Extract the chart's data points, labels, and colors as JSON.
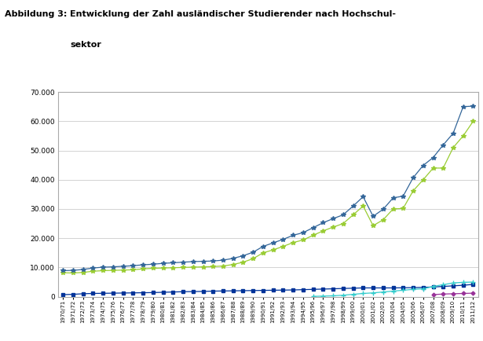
{
  "title_label": "Abbildung 3:",
  "title_text": "Entwicklung der Zahl ausländischer Studierender nach Hochschul-\nsektor",
  "years": [
    "1970/71",
    "1971/72",
    "1972/73",
    "1973/74",
    "1974/75",
    "1975/76",
    "1976/77",
    "1977/78",
    "1978/79",
    "1979/80",
    "1980/81",
    "1981/82",
    "1982/83",
    "1983/84",
    "1984/85",
    "1985/86",
    "1986/87",
    "1987/88",
    "1988/89",
    "1989/90",
    "1990/91",
    "1991/92",
    "1992/93",
    "1993/94",
    "1994/95",
    "1995/96",
    "1996/97",
    "1997/98",
    "1998/99",
    "1999/00",
    "2000/01",
    "2001/02",
    "2002/03",
    "2003/04",
    "2004/05",
    "2005/06",
    "2006/07",
    "2007/08",
    "2008/09",
    "2009/10",
    "2010/11",
    "2011/12"
  ],
  "wiss_univ": [
    8200,
    8100,
    8300,
    8700,
    8900,
    9000,
    9100,
    9200,
    9500,
    9700,
    9800,
    9900,
    10000,
    10100,
    10200,
    10300,
    10500,
    11000,
    11800,
    13000,
    15000,
    16000,
    17200,
    18500,
    19400,
    21000,
    22500,
    23800,
    25000,
    28000,
    31000,
    24300,
    26300,
    30000,
    30200,
    36200,
    40000,
    44000,
    44000,
    51000,
    55000,
    60000
  ],
  "kunstuniv": [
    700,
    800,
    1000,
    1100,
    1150,
    1200,
    1250,
    1300,
    1350,
    1400,
    1500,
    1600,
    1700,
    1750,
    1800,
    1900,
    1950,
    2000,
    2050,
    2100,
    2150,
    2200,
    2250,
    2300,
    2400,
    2500,
    2600,
    2700,
    2800,
    2900,
    3000,
    3000,
    3000,
    3000,
    3050,
    3100,
    3200,
    3300,
    3500,
    3700,
    3900,
    4200
  ],
  "fh_studiengaenge": [
    null,
    null,
    null,
    null,
    null,
    null,
    null,
    null,
    null,
    null,
    null,
    null,
    null,
    null,
    null,
    null,
    null,
    null,
    null,
    null,
    null,
    null,
    null,
    null,
    null,
    100,
    200,
    300,
    500,
    800,
    1100,
    1300,
    1600,
    1900,
    2200,
    2500,
    2700,
    3500,
    4100,
    4700,
    4900,
    5000
  ],
  "paed_hochschulen": [
    null,
    null,
    null,
    null,
    null,
    null,
    null,
    null,
    null,
    null,
    null,
    null,
    null,
    null,
    null,
    null,
    null,
    null,
    null,
    null,
    null,
    null,
    null,
    null,
    null,
    null,
    null,
    null,
    null,
    null,
    null,
    null,
    null,
    null,
    null,
    null,
    null,
    700,
    900,
    1000,
    1100,
    1200
  ],
  "hochschulen_gesamt": [
    8900,
    9000,
    9300,
    9800,
    10100,
    10200,
    10400,
    10600,
    10900,
    11100,
    11400,
    11600,
    11800,
    12000,
    12100,
    12200,
    12500,
    13100,
    14000,
    15200,
    17200,
    18400,
    19600,
    21000,
    21900,
    23600,
    25300,
    26700,
    28000,
    31000,
    34200,
    27500,
    29900,
    33800,
    34400,
    40700,
    44900,
    47600,
    51900,
    55900,
    65000,
    65200
  ],
  "colors": {
    "wiss_univ": "#99cc33",
    "kunstuniv": "#003399",
    "fh_studiengaenge": "#33cccc",
    "paed_hochschulen": "#993399",
    "hochschulen_gesamt": "#336699"
  },
  "yticks": [
    0,
    10000,
    20000,
    30000,
    40000,
    50000,
    60000,
    70000
  ],
  "ylim": [
    0,
    70000
  ],
  "background_color": "#ffffff",
  "grid_color": "#cccccc",
  "spine_color": "#aaaaaa"
}
